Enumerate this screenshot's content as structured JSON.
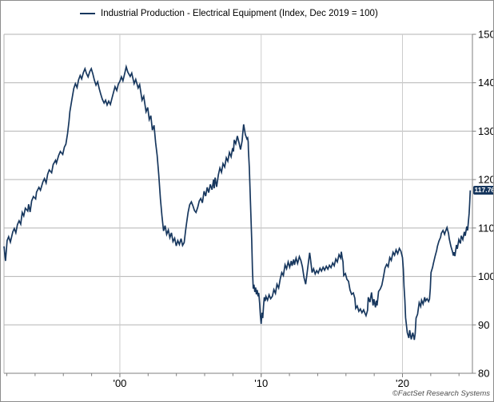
{
  "legend": {
    "label": "Industrial Production - Electrical Equipment (Index, Dec 2019 = 100)"
  },
  "footer": {
    "copyright": "©FactSet Research Systems"
  },
  "colors": {
    "line": "#17375e",
    "badge_bg": "#17375e",
    "badge_text": "#ffffff",
    "grid_horizontal": "#b3b3b3",
    "grid_vertical": "#cccccc",
    "axis": "#7f7f7f",
    "tick_label": "#000000",
    "background": "#ffffff",
    "border": "#8c8c8c"
  },
  "chart_data": {
    "type": "line",
    "title": "",
    "series_name": "Industrial Production - Electrical Equipment (Index, Dec 2019 = 100)",
    "legend_position": "top",
    "grid": true,
    "x_axis": {
      "range": [
        1991.8,
        2024.95
      ],
      "ticks": [
        2000,
        2010,
        2020
      ],
      "tick_labels": [
        "'00",
        "'10",
        "'20"
      ],
      "minor_tick_step_years": 2
    },
    "y_axis": {
      "side": "right",
      "range": [
        80,
        150
      ],
      "ticks": [
        80,
        90,
        100,
        110,
        120,
        130,
        140,
        150
      ]
    },
    "last_value_label": "117.76",
    "last_value": 117.76,
    "points": [
      [
        1991.8,
        106.2
      ],
      [
        1991.91,
        103.2
      ],
      [
        1992.02,
        107.4
      ],
      [
        1992.13,
        108.2
      ],
      [
        1992.25,
        107.1
      ],
      [
        1992.42,
        109.2
      ],
      [
        1992.53,
        109.9
      ],
      [
        1992.64,
        109.0
      ],
      [
        1992.75,
        110.7
      ],
      [
        1992.87,
        111.5
      ],
      [
        1992.98,
        110.8
      ],
      [
        1993.09,
        113.2
      ],
      [
        1993.2,
        112.5
      ],
      [
        1993.31,
        114.1
      ],
      [
        1993.48,
        113.5
      ],
      [
        1993.54,
        114.9
      ],
      [
        1993.65,
        113.3
      ],
      [
        1993.76,
        115.6
      ],
      [
        1993.88,
        116.5
      ],
      [
        1994.04,
        116.0
      ],
      [
        1994.1,
        117.4
      ],
      [
        1994.27,
        118.4
      ],
      [
        1994.38,
        117.8
      ],
      [
        1994.55,
        119.5
      ],
      [
        1994.66,
        120.2
      ],
      [
        1994.78,
        119.3
      ],
      [
        1994.89,
        121.1
      ],
      [
        1995.0,
        122.0
      ],
      [
        1995.17,
        121.4
      ],
      [
        1995.28,
        123.1
      ],
      [
        1995.45,
        124.0
      ],
      [
        1995.51,
        123.4
      ],
      [
        1995.67,
        125.0
      ],
      [
        1995.79,
        125.8
      ],
      [
        1995.96,
        125.2
      ],
      [
        1996.07,
        126.7
      ],
      [
        1996.18,
        127.3
      ],
      [
        1996.3,
        129.5
      ],
      [
        1996.4,
        132.0
      ],
      [
        1996.46,
        134.0
      ],
      [
        1996.6,
        136.5
      ],
      [
        1996.74,
        138.8
      ],
      [
        1996.85,
        139.8
      ],
      [
        1996.97,
        139.0
      ],
      [
        1997.08,
        140.6
      ],
      [
        1997.19,
        141.5
      ],
      [
        1997.3,
        140.8
      ],
      [
        1997.42,
        142.1
      ],
      [
        1997.53,
        142.9
      ],
      [
        1997.64,
        141.9
      ],
      [
        1997.75,
        141.2
      ],
      [
        1997.87,
        142.3
      ],
      [
        1997.98,
        142.9
      ],
      [
        1998.09,
        141.8
      ],
      [
        1998.2,
        140.5
      ],
      [
        1998.31,
        139.5
      ],
      [
        1998.43,
        140.2
      ],
      [
        1998.54,
        138.8
      ],
      [
        1998.65,
        137.6
      ],
      [
        1998.76,
        136.6
      ],
      [
        1998.88,
        135.8
      ],
      [
        1998.99,
        136.4
      ],
      [
        1999.1,
        135.4
      ],
      [
        1999.21,
        136.2
      ],
      [
        1999.33,
        135.5
      ],
      [
        1999.44,
        136.8
      ],
      [
        1999.55,
        138.0
      ],
      [
        1999.66,
        139.2
      ],
      [
        1999.78,
        138.4
      ],
      [
        1999.89,
        139.7
      ],
      [
        2000.0,
        140.3
      ],
      [
        2000.11,
        141.2
      ],
      [
        2000.22,
        140.4
      ],
      [
        2000.34,
        141.9
      ],
      [
        2000.45,
        143.3
      ],
      [
        2000.56,
        142.2
      ],
      [
        2000.73,
        141.3
      ],
      [
        2000.84,
        142.0
      ],
      [
        2001.01,
        139.8
      ],
      [
        2001.12,
        140.7
      ],
      [
        2001.29,
        138.9
      ],
      [
        2001.4,
        139.6
      ],
      [
        2001.57,
        136.4
      ],
      [
        2001.69,
        137.2
      ],
      [
        2001.85,
        134.0
      ],
      [
        2001.97,
        134.9
      ],
      [
        2002.08,
        132.4
      ],
      [
        2002.19,
        133.2
      ],
      [
        2002.3,
        130.2
      ],
      [
        2002.42,
        131.2
      ],
      [
        2002.53,
        127.6
      ],
      [
        2002.64,
        125.0
      ],
      [
        2002.75,
        121.0
      ],
      [
        2002.87,
        116.0
      ],
      [
        2002.98,
        112.5
      ],
      [
        2003.09,
        109.4
      ],
      [
        2003.2,
        110.5
      ],
      [
        2003.31,
        108.7
      ],
      [
        2003.43,
        109.6
      ],
      [
        2003.54,
        108.0
      ],
      [
        2003.65,
        109.0
      ],
      [
        2003.76,
        107.2
      ],
      [
        2003.88,
        107.9
      ],
      [
        2003.99,
        106.3
      ],
      [
        2004.1,
        107.4
      ],
      [
        2004.21,
        106.6
      ],
      [
        2004.33,
        107.8
      ],
      [
        2004.44,
        106.4
      ],
      [
        2004.55,
        107.0
      ],
      [
        2004.65,
        109.5
      ],
      [
        2004.72,
        111.0
      ],
      [
        2004.83,
        113.2
      ],
      [
        2004.94,
        114.8
      ],
      [
        2005.06,
        115.4
      ],
      [
        2005.17,
        114.6
      ],
      [
        2005.28,
        113.6
      ],
      [
        2005.39,
        113.2
      ],
      [
        2005.51,
        114.3
      ],
      [
        2005.62,
        115.6
      ],
      [
        2005.73,
        116.1
      ],
      [
        2005.84,
        115.2
      ],
      [
        2005.96,
        117.6
      ],
      [
        2006.07,
        116.6
      ],
      [
        2006.18,
        118.4
      ],
      [
        2006.29,
        117.3
      ],
      [
        2006.4,
        119.0
      ],
      [
        2006.52,
        117.9
      ],
      [
        2006.63,
        120.0
      ],
      [
        2006.68,
        118.2
      ],
      [
        2006.74,
        120.4
      ],
      [
        2006.85,
        118.5
      ],
      [
        2006.97,
        121.0
      ],
      [
        2007.08,
        122.4
      ],
      [
        2007.19,
        121.5
      ],
      [
        2007.3,
        123.3
      ],
      [
        2007.42,
        122.6
      ],
      [
        2007.53,
        124.5
      ],
      [
        2007.64,
        123.8
      ],
      [
        2007.75,
        125.6
      ],
      [
        2007.87,
        124.7
      ],
      [
        2007.98,
        126.5
      ],
      [
        2008.04,
        125.8
      ],
      [
        2008.09,
        128.2
      ],
      [
        2008.2,
        127.4
      ],
      [
        2008.31,
        129.0
      ],
      [
        2008.43,
        127.6
      ],
      [
        2008.54,
        126.2
      ],
      [
        2008.65,
        128.0
      ],
      [
        2008.7,
        129.6
      ],
      [
        2008.76,
        131.4
      ],
      [
        2008.88,
        129.3
      ],
      [
        2008.99,
        128.4
      ],
      [
        2009.04,
        128.6
      ],
      [
        2009.08,
        127.8
      ],
      [
        2009.1,
        126.0
      ],
      [
        2009.16,
        122.5
      ],
      [
        2009.21,
        118.0
      ],
      [
        2009.27,
        113.0
      ],
      [
        2009.33,
        107.5
      ],
      [
        2009.38,
        101.5
      ],
      [
        2009.44,
        97.5
      ],
      [
        2009.49,
        98.3
      ],
      [
        2009.55,
        96.8
      ],
      [
        2009.61,
        97.7
      ],
      [
        2009.66,
        96.3
      ],
      [
        2009.72,
        97.2
      ],
      [
        2009.78,
        95.9
      ],
      [
        2009.83,
        96.6
      ],
      [
        2009.89,
        94.5
      ],
      [
        2009.94,
        92.0
      ],
      [
        2010.0,
        90.2
      ],
      [
        2010.06,
        92.5
      ],
      [
        2010.11,
        91.4
      ],
      [
        2010.17,
        93.9
      ],
      [
        2010.22,
        95.7
      ],
      [
        2010.28,
        94.9
      ],
      [
        2010.34,
        95.9
      ],
      [
        2010.45,
        95.1
      ],
      [
        2010.56,
        96.2
      ],
      [
        2010.67,
        95.4
      ],
      [
        2010.79,
        95.9
      ],
      [
        2010.9,
        97.3
      ],
      [
        2011.01,
        96.5
      ],
      [
        2011.12,
        98.4
      ],
      [
        2011.24,
        97.6
      ],
      [
        2011.35,
        99.5
      ],
      [
        2011.46,
        100.8
      ],
      [
        2011.57,
        100.2
      ],
      [
        2011.69,
        102.4
      ],
      [
        2011.8,
        101.6
      ],
      [
        2011.91,
        103.0
      ],
      [
        2012.02,
        101.9
      ],
      [
        2012.13,
        103.2
      ],
      [
        2012.19,
        102.2
      ],
      [
        2012.3,
        103.5
      ],
      [
        2012.36,
        102.4
      ],
      [
        2012.47,
        103.8
      ],
      [
        2012.58,
        102.7
      ],
      [
        2012.7,
        104.1
      ],
      [
        2012.81,
        103.3
      ],
      [
        2012.92,
        102.0
      ],
      [
        2013.03,
        99.8
      ],
      [
        2013.15,
        98.4
      ],
      [
        2013.26,
        101.0
      ],
      [
        2013.37,
        103.5
      ],
      [
        2013.43,
        104.9
      ],
      [
        2013.48,
        103.9
      ],
      [
        2013.6,
        100.8
      ],
      [
        2013.71,
        101.6
      ],
      [
        2013.82,
        100.5
      ],
      [
        2013.93,
        101.2
      ],
      [
        2014.04,
        100.7
      ],
      [
        2014.16,
        101.7
      ],
      [
        2014.27,
        101.1
      ],
      [
        2014.38,
        101.9
      ],
      [
        2014.49,
        101.3
      ],
      [
        2014.61,
        102.1
      ],
      [
        2014.72,
        101.5
      ],
      [
        2014.83,
        102.3
      ],
      [
        2014.94,
        101.8
      ],
      [
        2015.06,
        102.8
      ],
      [
        2015.17,
        102.2
      ],
      [
        2015.28,
        103.6
      ],
      [
        2015.39,
        103.0
      ],
      [
        2015.51,
        104.5
      ],
      [
        2015.62,
        103.8
      ],
      [
        2015.67,
        105.1
      ],
      [
        2015.73,
        104.0
      ],
      [
        2015.79,
        103.0
      ],
      [
        2015.84,
        100.2
      ],
      [
        2015.96,
        100.6
      ],
      [
        2016.07,
        99.4
      ],
      [
        2016.18,
        99.0
      ],
      [
        2016.29,
        97.2
      ],
      [
        2016.4,
        96.3
      ],
      [
        2016.52,
        96.6
      ],
      [
        2016.63,
        95.5
      ],
      [
        2016.69,
        93.4
      ],
      [
        2016.8,
        93.9
      ],
      [
        2016.91,
        92.8
      ],
      [
        2017.02,
        93.3
      ],
      [
        2017.13,
        92.5
      ],
      [
        2017.25,
        93.1
      ],
      [
        2017.36,
        92.3
      ],
      [
        2017.42,
        91.9
      ],
      [
        2017.53,
        93.0
      ],
      [
        2017.58,
        95.7
      ],
      [
        2017.7,
        94.7
      ],
      [
        2017.81,
        96.7
      ],
      [
        2017.92,
        94.0
      ],
      [
        2017.98,
        95.3
      ],
      [
        2018.09,
        93.6
      ],
      [
        2018.15,
        95.0
      ],
      [
        2018.2,
        94.0
      ],
      [
        2018.31,
        96.9
      ],
      [
        2018.43,
        97.4
      ],
      [
        2018.54,
        98.2
      ],
      [
        2018.65,
        99.8
      ],
      [
        2018.76,
        101.7
      ],
      [
        2018.88,
        102.5
      ],
      [
        2018.99,
        102.0
      ],
      [
        2019.1,
        103.9
      ],
      [
        2019.21,
        103.3
      ],
      [
        2019.33,
        105.0
      ],
      [
        2019.44,
        104.4
      ],
      [
        2019.55,
        105.5
      ],
      [
        2019.66,
        104.7
      ],
      [
        2019.78,
        105.8
      ],
      [
        2019.89,
        105.2
      ],
      [
        2020.0,
        103.9
      ],
      [
        2020.06,
        101.5
      ],
      [
        2020.11,
        98.0
      ],
      [
        2020.17,
        95.1
      ],
      [
        2020.22,
        91.5
      ],
      [
        2020.34,
        88.4
      ],
      [
        2020.45,
        87.3
      ],
      [
        2020.51,
        88.9
      ],
      [
        2020.62,
        87.0
      ],
      [
        2020.73,
        88.4
      ],
      [
        2020.79,
        87.6
      ],
      [
        2020.84,
        86.9
      ],
      [
        2020.9,
        88.2
      ],
      [
        2020.96,
        91.4
      ],
      [
        2021.07,
        92.2
      ],
      [
        2021.18,
        94.6
      ],
      [
        2021.29,
        93.8
      ],
      [
        2021.35,
        95.1
      ],
      [
        2021.46,
        94.3
      ],
      [
        2021.57,
        95.7
      ],
      [
        2021.63,
        94.9
      ],
      [
        2021.74,
        95.4
      ],
      [
        2021.85,
        94.8
      ],
      [
        2021.91,
        95.3
      ],
      [
        2021.97,
        97.5
      ],
      [
        2022.02,
        100.8
      ],
      [
        2022.13,
        101.9
      ],
      [
        2022.19,
        102.7
      ],
      [
        2022.3,
        104.1
      ],
      [
        2022.42,
        105.4
      ],
      [
        2022.47,
        106.2
      ],
      [
        2022.58,
        107.3
      ],
      [
        2022.7,
        108.1
      ],
      [
        2022.75,
        108.9
      ],
      [
        2022.87,
        109.5
      ],
      [
        2022.98,
        108.7
      ],
      [
        2023.03,
        109.2
      ],
      [
        2023.15,
        110.1
      ],
      [
        2023.26,
        108.9
      ],
      [
        2023.31,
        107.8
      ],
      [
        2023.43,
        106.2
      ],
      [
        2023.54,
        105.1
      ],
      [
        2023.6,
        104.3
      ],
      [
        2023.65,
        105.0
      ],
      [
        2023.71,
        104.2
      ],
      [
        2023.82,
        106.5
      ],
      [
        2023.88,
        105.7
      ],
      [
        2023.99,
        107.6
      ],
      [
        2024.1,
        106.8
      ],
      [
        2024.16,
        108.4
      ],
      [
        2024.27,
        107.6
      ],
      [
        2024.38,
        109.2
      ],
      [
        2024.44,
        108.4
      ],
      [
        2024.55,
        110.3
      ],
      [
        2024.61,
        109.5
      ],
      [
        2024.66,
        111.2
      ],
      [
        2024.72,
        113.0
      ],
      [
        2024.76,
        115.2
      ],
      [
        2024.8,
        117.76
      ]
    ]
  }
}
